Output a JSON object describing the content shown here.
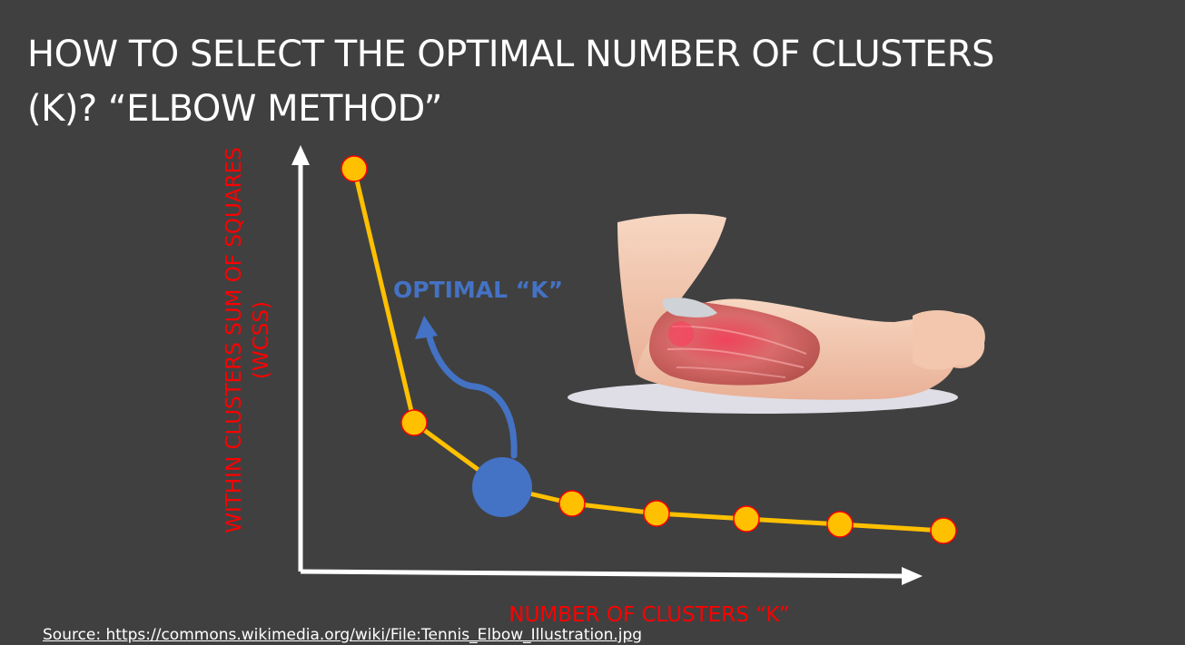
{
  "slide": {
    "title_line1": "HOW TO SELECT THE OPTIMAL NUMBER OF CLUSTERS",
    "title_line2": "(K)? “ELBOW METHOD”",
    "source": "Source: https://commons.wikimedia.org/wiki/File:Tennis_Elbow_Illustration.jpg"
  },
  "diagram": {
    "y_axis_label_line1": "WITHIN CLUSTERS SUM OF SQUARES",
    "y_axis_label_line2": "(WCSS)",
    "x_axis_label": "NUMBER OF CLUSTERS “K”",
    "optimal_label": "OPTIMAL “K”",
    "illustration": "tennis-elbow-arm",
    "colors": {
      "background": "#404040",
      "title": "#ffffff",
      "axis": "#ffffff",
      "axis_label": "#ff0000",
      "curve": "#ffc000",
      "point_fill": "#ffc000",
      "point_stroke": "#ff0000",
      "optimal_marker": "#4472c4",
      "optimal_label": "#4472c4"
    }
  }
}
